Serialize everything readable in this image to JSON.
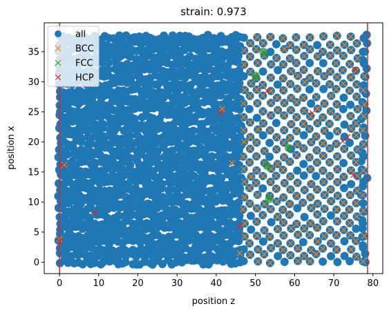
{
  "chart_data": {
    "type": "scatter",
    "title": "strain: 0.973",
    "xlabel": "position z",
    "ylabel": "position x",
    "xlim": [
      -3.9,
      82.5
    ],
    "ylim": [
      -1.9,
      39.8
    ],
    "xticks": [
      0,
      10,
      20,
      30,
      40,
      50,
      60,
      70,
      80
    ],
    "yticks": [
      0,
      5,
      10,
      15,
      20,
      25,
      30,
      35
    ],
    "vlines": [
      0,
      78.6
    ],
    "vline_color": "#d62728",
    "legend_position": "upper-left",
    "grid": false,
    "dense_region": {
      "series": "all",
      "z_range": [
        0,
        78.6
      ],
      "x_range": [
        0,
        38
      ],
      "ordered_region_z_start": 47,
      "marker": "filled-circle"
    },
    "series": [
      {
        "name": "all",
        "marker": "circle",
        "color": "#1f77b4"
      },
      {
        "name": "BCC",
        "marker": "x",
        "color": "#ff7f0e"
      },
      {
        "name": "FCC",
        "marker": "x",
        "color": "#2ca02c",
        "points": [
          [
            52,
            35
          ],
          [
            50,
            31
          ],
          [
            58.5,
            19
          ],
          [
            53,
            16
          ],
          [
            53.5,
            10.5
          ]
        ]
      },
      {
        "name": "HCP",
        "marker": "x",
        "color": "#d62728",
        "points": [
          [
            0,
            3.5
          ],
          [
            0.6,
            16.1
          ],
          [
            9,
            8.2
          ],
          [
            41,
            24.8
          ],
          [
            46,
            6
          ],
          [
            53,
            28.5
          ],
          [
            64.5,
            24.8
          ],
          [
            72.3,
            20.1
          ],
          [
            75,
            14.5
          ],
          [
            73.5,
            20.8
          ],
          [
            75.5,
            32
          ]
        ]
      }
    ]
  }
}
